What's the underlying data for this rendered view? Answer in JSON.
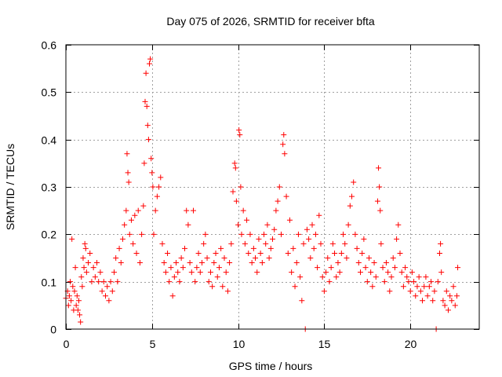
{
  "chart_data": {
    "type": "scatter",
    "title": "Day 075 of 2026, SRMTID for receiver bfta",
    "xlabel": "GPS time / hours",
    "ylabel": "SRMTID / TECUs",
    "xlim": [
      0,
      24
    ],
    "ylim": [
      0,
      0.6
    ],
    "xticks": [
      0,
      5,
      10,
      15,
      20
    ],
    "xtick_labels": [
      "0",
      "5",
      "10",
      "15",
      "20"
    ],
    "yticks": [
      0,
      0.1,
      0.2,
      0.3,
      0.4,
      0.5,
      0.6
    ],
    "ytick_labels": [
      "0",
      "0.1",
      "0.2",
      "0.3",
      "0.4",
      "0.5",
      "0.6"
    ],
    "grid": true,
    "marker": "plus",
    "color": "#ff0000",
    "series": [
      {
        "name": "SRMTID",
        "points": [
          [
            0.0,
            0.065
          ],
          [
            0.1,
            0.08
          ],
          [
            0.15,
            0.05
          ],
          [
            0.2,
            0.07
          ],
          [
            0.25,
            0.1
          ],
          [
            0.3,
            0.06
          ],
          [
            0.35,
            0.19
          ],
          [
            0.4,
            0.09
          ],
          [
            0.45,
            0.04
          ],
          [
            0.5,
            0.08
          ],
          [
            0.55,
            0.13
          ],
          [
            0.6,
            0.05
          ],
          [
            0.65,
            0.07
          ],
          [
            0.7,
            0.04
          ],
          [
            0.75,
            0.06
          ],
          [
            0.8,
            0.03
          ],
          [
            0.85,
            0.015
          ],
          [
            0.9,
            0.11
          ],
          [
            0.95,
            0.09
          ],
          [
            1.0,
            0.15
          ],
          [
            1.05,
            0.13
          ],
          [
            1.1,
            0.18
          ],
          [
            1.15,
            0.17
          ],
          [
            1.2,
            0.12
          ],
          [
            1.3,
            0.14
          ],
          [
            1.4,
            0.16
          ],
          [
            1.5,
            0.1
          ],
          [
            1.6,
            0.13
          ],
          [
            1.7,
            0.11
          ],
          [
            1.8,
            0.14
          ],
          [
            1.9,
            0.1
          ],
          [
            2.0,
            0.12
          ],
          [
            2.1,
            0.08
          ],
          [
            2.2,
            0.1
          ],
          [
            2.3,
            0.07
          ],
          [
            2.4,
            0.09
          ],
          [
            2.5,
            0.06
          ],
          [
            2.6,
            0.1
          ],
          [
            2.7,
            0.08
          ],
          [
            2.8,
            0.12
          ],
          [
            2.9,
            0.15
          ],
          [
            3.0,
            0.1
          ],
          [
            3.1,
            0.17
          ],
          [
            3.2,
            0.14
          ],
          [
            3.3,
            0.19
          ],
          [
            3.4,
            0.22
          ],
          [
            3.5,
            0.25
          ],
          [
            3.55,
            0.37
          ],
          [
            3.6,
            0.33
          ],
          [
            3.65,
            0.31
          ],
          [
            3.7,
            0.2
          ],
          [
            3.8,
            0.23
          ],
          [
            3.9,
            0.18
          ],
          [
            4.0,
            0.24
          ],
          [
            4.1,
            0.16
          ],
          [
            4.2,
            0.25
          ],
          [
            4.3,
            0.14
          ],
          [
            4.4,
            0.2
          ],
          [
            4.5,
            0.26
          ],
          [
            4.55,
            0.35
          ],
          [
            4.6,
            0.48
          ],
          [
            4.65,
            0.54
          ],
          [
            4.7,
            0.47
          ],
          [
            4.75,
            0.43
          ],
          [
            4.8,
            0.4
          ],
          [
            4.85,
            0.56
          ],
          [
            4.9,
            0.57
          ],
          [
            4.95,
            0.36
          ],
          [
            5.0,
            0.33
          ],
          [
            5.05,
            0.3
          ],
          [
            5.1,
            0.2
          ],
          [
            5.2,
            0.25
          ],
          [
            5.3,
            0.28
          ],
          [
            5.4,
            0.3
          ],
          [
            5.5,
            0.32
          ],
          [
            5.6,
            0.18
          ],
          [
            5.7,
            0.14
          ],
          [
            5.8,
            0.12
          ],
          [
            5.9,
            0.16
          ],
          [
            6.0,
            0.1
          ],
          [
            6.1,
            0.13
          ],
          [
            6.2,
            0.07
          ],
          [
            6.3,
            0.11
          ],
          [
            6.4,
            0.14
          ],
          [
            6.5,
            0.12
          ],
          [
            6.6,
            0.1
          ],
          [
            6.7,
            0.15
          ],
          [
            6.8,
            0.13
          ],
          [
            6.9,
            0.17
          ],
          [
            7.0,
            0.25
          ],
          [
            7.1,
            0.22
          ],
          [
            7.2,
            0.14
          ],
          [
            7.3,
            0.12
          ],
          [
            7.4,
            0.25
          ],
          [
            7.5,
            0.1
          ],
          [
            7.6,
            0.13
          ],
          [
            7.7,
            0.16
          ],
          [
            7.8,
            0.12
          ],
          [
            7.9,
            0.14
          ],
          [
            8.0,
            0.18
          ],
          [
            8.1,
            0.2
          ],
          [
            8.2,
            0.15
          ],
          [
            8.3,
            0.1
          ],
          [
            8.4,
            0.12
          ],
          [
            8.5,
            0.09
          ],
          [
            8.6,
            0.14
          ],
          [
            8.7,
            0.16
          ],
          [
            8.8,
            0.11
          ],
          [
            8.9,
            0.13
          ],
          [
            9.0,
            0.17
          ],
          [
            9.1,
            0.09
          ],
          [
            9.2,
            0.15
          ],
          [
            9.3,
            0.12
          ],
          [
            9.4,
            0.08
          ],
          [
            9.5,
            0.14
          ],
          [
            9.6,
            0.18
          ],
          [
            9.7,
            0.29
          ],
          [
            9.8,
            0.35
          ],
          [
            9.85,
            0.34
          ],
          [
            9.9,
            0.27
          ],
          [
            10.0,
            0.22
          ],
          [
            10.05,
            0.42
          ],
          [
            10.1,
            0.41
          ],
          [
            10.15,
            0.3
          ],
          [
            10.2,
            0.2
          ],
          [
            10.3,
            0.25
          ],
          [
            10.4,
            0.18
          ],
          [
            10.5,
            0.23
          ],
          [
            10.6,
            0.16
          ],
          [
            10.7,
            0.2
          ],
          [
            10.8,
            0.14
          ],
          [
            10.9,
            0.17
          ],
          [
            11.0,
            0.15
          ],
          [
            11.1,
            0.12
          ],
          [
            11.2,
            0.19
          ],
          [
            11.3,
            0.16
          ],
          [
            11.4,
            0.14
          ],
          [
            11.5,
            0.2
          ],
          [
            11.6,
            0.18
          ],
          [
            11.7,
            0.22
          ],
          [
            11.8,
            0.15
          ],
          [
            11.9,
            0.17
          ],
          [
            12.0,
            0.19
          ],
          [
            12.1,
            0.21
          ],
          [
            12.2,
            0.25
          ],
          [
            12.3,
            0.27
          ],
          [
            12.4,
            0.3
          ],
          [
            12.5,
            0.2
          ],
          [
            12.6,
            0.39
          ],
          [
            12.65,
            0.41
          ],
          [
            12.7,
            0.37
          ],
          [
            12.8,
            0.28
          ],
          [
            12.9,
            0.16
          ],
          [
            13.0,
            0.23
          ],
          [
            13.1,
            0.12
          ],
          [
            13.2,
            0.17
          ],
          [
            13.3,
            0.09
          ],
          [
            13.4,
            0.14
          ],
          [
            13.5,
            0.2
          ],
          [
            13.6,
            0.11
          ],
          [
            13.7,
            0.06
          ],
          [
            13.8,
            0.18
          ],
          [
            13.9,
            0.0
          ],
          [
            14.0,
            0.21
          ],
          [
            14.1,
            0.19
          ],
          [
            14.2,
            0.15
          ],
          [
            14.3,
            0.22
          ],
          [
            14.4,
            0.17
          ],
          [
            14.5,
            0.2
          ],
          [
            14.6,
            0.13
          ],
          [
            14.7,
            0.24
          ],
          [
            14.8,
            0.18
          ],
          [
            14.9,
            0.11
          ],
          [
            15.0,
            0.08
          ],
          [
            15.1,
            0.12
          ],
          [
            15.2,
            0.15
          ],
          [
            15.3,
            0.1
          ],
          [
            15.4,
            0.13
          ],
          [
            15.5,
            0.18
          ],
          [
            15.6,
            0.16
          ],
          [
            15.7,
            0.11
          ],
          [
            15.8,
            0.14
          ],
          [
            15.9,
            0.12
          ],
          [
            16.0,
            0.16
          ],
          [
            16.1,
            0.2
          ],
          [
            16.2,
            0.18
          ],
          [
            16.3,
            0.15
          ],
          [
            16.4,
            0.22
          ],
          [
            16.5,
            0.26
          ],
          [
            16.6,
            0.28
          ],
          [
            16.7,
            0.31
          ],
          [
            16.8,
            0.2
          ],
          [
            16.9,
            0.17
          ],
          [
            17.0,
            0.14
          ],
          [
            17.1,
            0.12
          ],
          [
            17.2,
            0.16
          ],
          [
            17.3,
            0.19
          ],
          [
            17.4,
            0.13
          ],
          [
            17.5,
            0.1
          ],
          [
            17.6,
            0.15
          ],
          [
            17.7,
            0.12
          ],
          [
            17.8,
            0.09
          ],
          [
            17.9,
            0.14
          ],
          [
            18.0,
            0.11
          ],
          [
            18.1,
            0.27
          ],
          [
            18.15,
            0.34
          ],
          [
            18.2,
            0.3
          ],
          [
            18.25,
            0.25
          ],
          [
            18.3,
            0.18
          ],
          [
            18.4,
            0.13
          ],
          [
            18.5,
            0.1
          ],
          [
            18.6,
            0.14
          ],
          [
            18.7,
            0.12
          ],
          [
            18.8,
            0.08
          ],
          [
            18.9,
            0.11
          ],
          [
            19.0,
            0.15
          ],
          [
            19.1,
            0.13
          ],
          [
            19.2,
            0.19
          ],
          [
            19.3,
            0.22
          ],
          [
            19.4,
            0.16
          ],
          [
            19.5,
            0.12
          ],
          [
            19.6,
            0.09
          ],
          [
            19.7,
            0.13
          ],
          [
            19.8,
            0.11
          ],
          [
            19.9,
            0.1
          ],
          [
            20.0,
            0.08
          ],
          [
            20.1,
            0.12
          ],
          [
            20.2,
            0.1
          ],
          [
            20.3,
            0.07
          ],
          [
            20.4,
            0.09
          ],
          [
            20.5,
            0.11
          ],
          [
            20.6,
            0.08
          ],
          [
            20.7,
            0.06
          ],
          [
            20.8,
            0.09
          ],
          [
            20.9,
            0.11
          ],
          [
            21.0,
            0.07
          ],
          [
            21.1,
            0.09
          ],
          [
            21.2,
            0.1
          ],
          [
            21.3,
            0.06
          ],
          [
            21.4,
            0.08
          ],
          [
            21.5,
            0.0
          ],
          [
            21.6,
            0.1
          ],
          [
            21.7,
            0.16
          ],
          [
            21.75,
            0.18
          ],
          [
            21.8,
            0.12
          ],
          [
            21.9,
            0.06
          ],
          [
            22.0,
            0.05
          ],
          [
            22.1,
            0.08
          ],
          [
            22.2,
            0.04
          ],
          [
            22.3,
            0.07
          ],
          [
            22.4,
            0.06
          ],
          [
            22.5,
            0.09
          ],
          [
            22.6,
            0.05
          ],
          [
            22.7,
            0.07
          ],
          [
            22.75,
            0.13
          ]
        ]
      }
    ]
  }
}
